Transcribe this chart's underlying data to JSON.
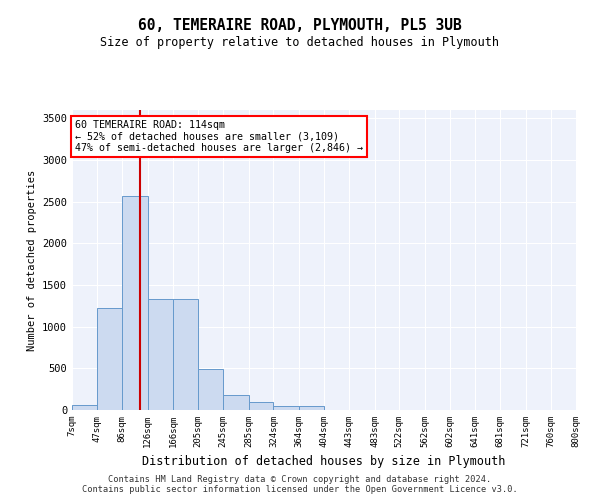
{
  "title": "60, TEMERAIRE ROAD, PLYMOUTH, PL5 3UB",
  "subtitle": "Size of property relative to detached houses in Plymouth",
  "xlabel": "Distribution of detached houses by size in Plymouth",
  "ylabel": "Number of detached properties",
  "footer_line1": "Contains HM Land Registry data © Crown copyright and database right 2024.",
  "footer_line2": "Contains public sector information licensed under the Open Government Licence v3.0.",
  "annotation_title": "60 TEMERAIRE ROAD: 114sqm",
  "annotation_line2": "← 52% of detached houses are smaller (3,109)",
  "annotation_line3": "47% of semi-detached houses are larger (2,846) →",
  "red_line_x": 114,
  "bar_color": "#ccdaf0",
  "bar_edge_color": "#6699cc",
  "red_line_color": "#cc0000",
  "background_color": "#eef2fb",
  "bins": [
    7,
    47,
    86,
    126,
    166,
    205,
    245,
    285,
    324,
    364,
    404,
    443,
    483,
    522,
    562,
    602,
    641,
    681,
    721,
    760,
    800
  ],
  "counts": [
    55,
    1230,
    2570,
    1330,
    1330,
    495,
    185,
    100,
    50,
    50,
    0,
    0,
    0,
    0,
    0,
    0,
    0,
    0,
    0,
    0
  ],
  "ylim": [
    0,
    3600
  ],
  "xlim": [
    7,
    800
  ]
}
